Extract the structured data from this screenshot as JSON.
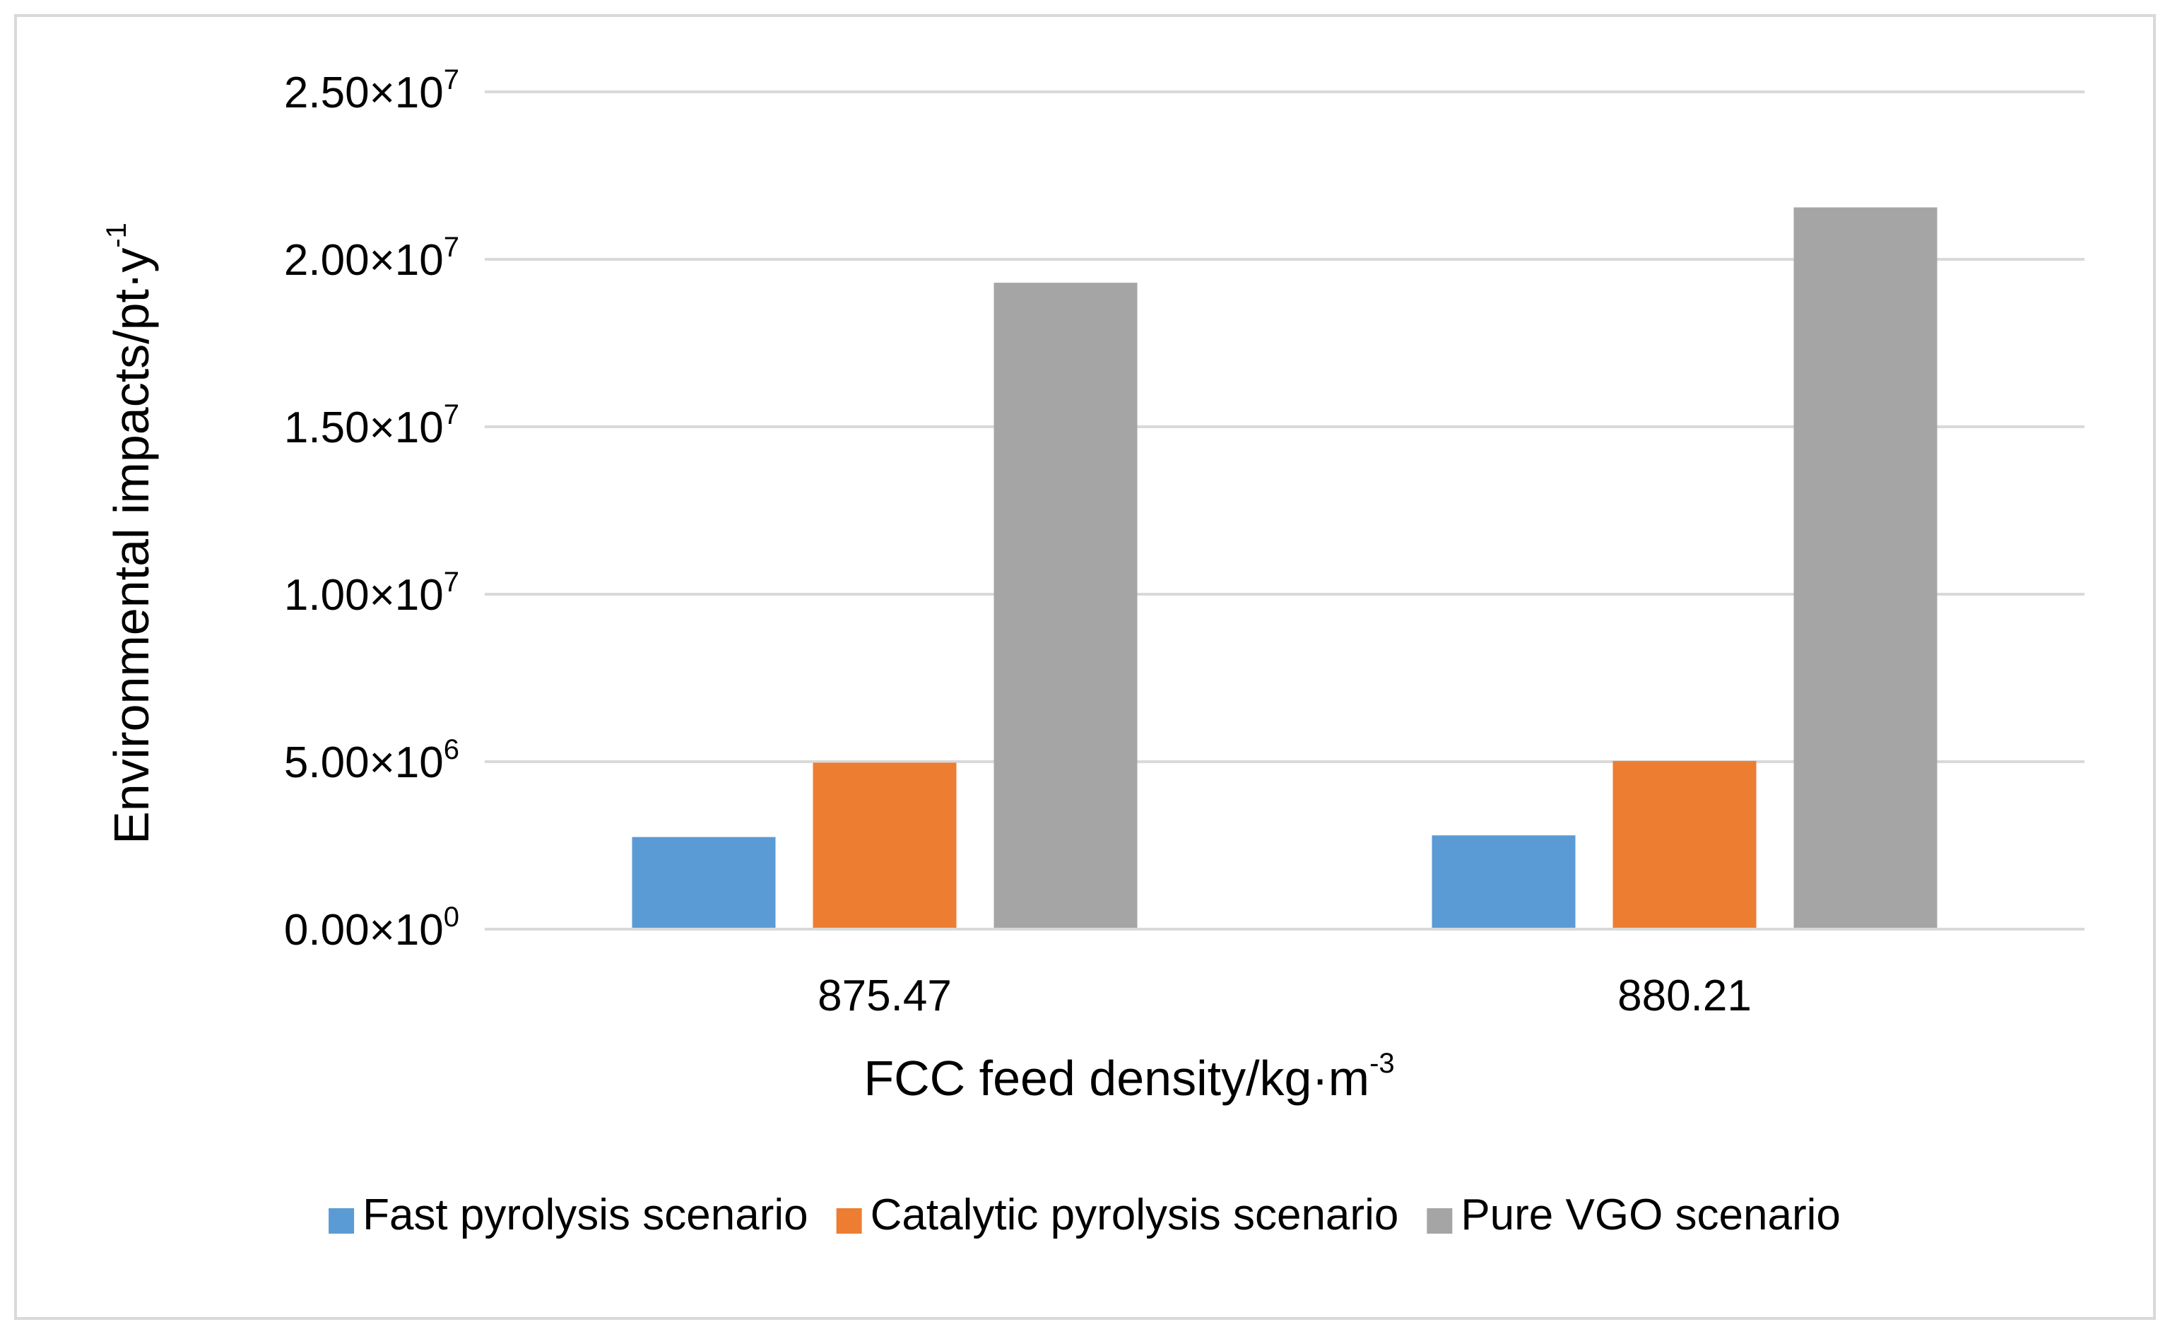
{
  "chart_data": {
    "type": "bar",
    "title": "",
    "xlabel": "FCC feed density/kg·m",
    "xlabel_sup": "-3",
    "ylabel": "Environmental impacts/pt·y",
    "ylabel_sup": "-1",
    "categories": [
      "875.47",
      "880.21"
    ],
    "series": [
      {
        "name": "Fast pyrolysis scenario",
        "color": "#5b9bd5",
        "values": [
          2750000,
          2800000
        ]
      },
      {
        "name": "Catalytic pyrolysis scenario",
        "color": "#ed7d31",
        "values": [
          4970000,
          5020000
        ]
      },
      {
        "name": "Pure VGO scenario",
        "color": "#a5a5a5",
        "values": [
          19300000,
          21550000
        ]
      }
    ],
    "ylim": [
      0,
      25000000
    ],
    "yticks": [
      {
        "value": 0,
        "mantissa": "0.00",
        "times": "×10",
        "exp": "0"
      },
      {
        "value": 5000000,
        "mantissa": "5.00",
        "times": "×10",
        "exp": "6"
      },
      {
        "value": 10000000,
        "mantissa": "1.00",
        "times": "×10",
        "exp": "7"
      },
      {
        "value": 15000000,
        "mantissa": "1.50",
        "times": "×10",
        "exp": "7"
      },
      {
        "value": 20000000,
        "mantissa": "2.00",
        "times": "×10",
        "exp": "7"
      },
      {
        "value": 25000000,
        "mantissa": "2.50",
        "times": "×10",
        "exp": "7"
      }
    ],
    "grid": true,
    "legend_position": "bottom"
  }
}
